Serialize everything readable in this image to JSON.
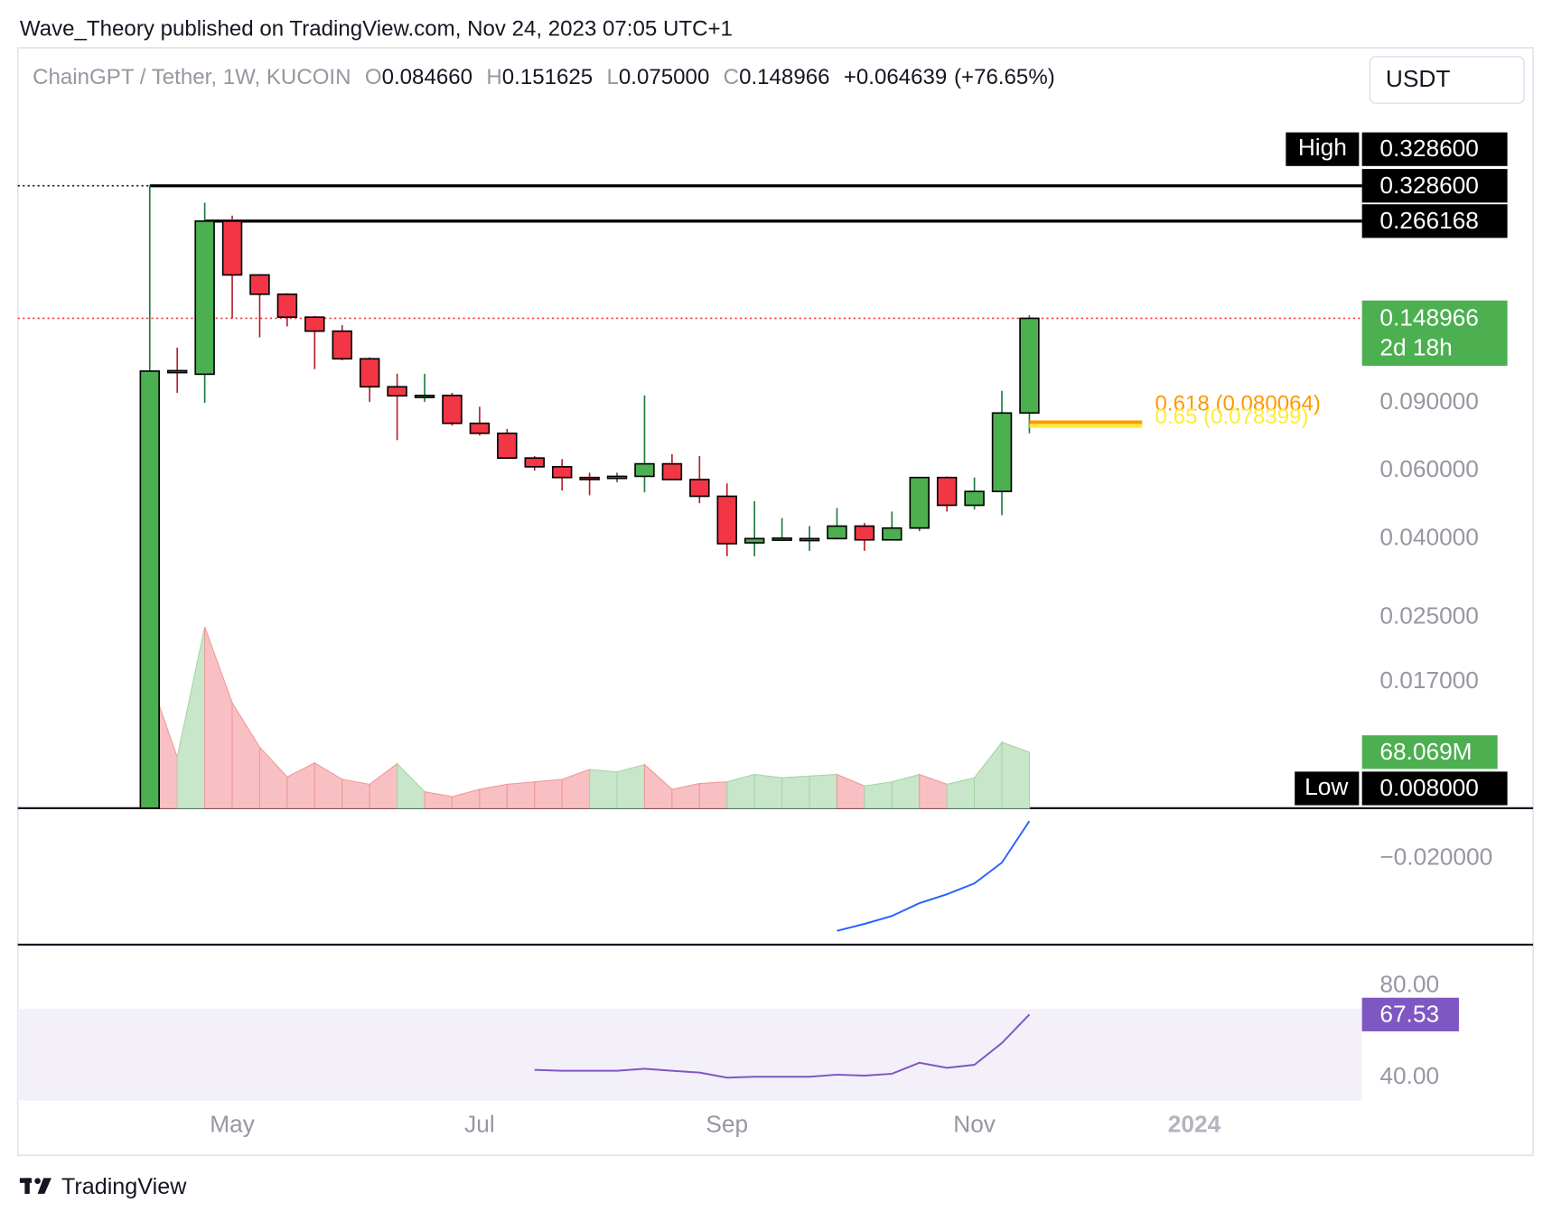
{
  "header": {
    "publisher": "Wave_Theory published on TradingView.com, Nov 24, 2023 07:05 UTC+1"
  },
  "footer": {
    "logo": "TradingView"
  },
  "chart_data": [
    {
      "type": "candlestick",
      "symbol": "ChainGPT / Tether, 1W, KUCOIN",
      "currency": "USDT",
      "legend_letters": [
        "O",
        "H",
        "L",
        "C"
      ],
      "legend_values": [
        {
          "value": 0.08466,
          "label": "0.084660"
        },
        0.151625,
        {
          "value": 0.075,
          "label": "0.075000"
        },
        0.148966,
        {
          "value": 0.064639,
          "label": "+0.064639"
        },
        {
          "value": 76.65,
          "label": "(+76.65%)"
        }
      ],
      "x": [
        0,
        1,
        2,
        3,
        4,
        5,
        6,
        7,
        8,
        9,
        10,
        11,
        12,
        13,
        14,
        15,
        16,
        17,
        18,
        19,
        20,
        21,
        22,
        23,
        24,
        25,
        26,
        27,
        28,
        29,
        30,
        31,
        32
      ],
      "open": [
        0.008,
        0.109,
        0.1067,
        0.266168,
        0.193,
        0.172,
        0.15,
        0.138,
        0.117,
        0.099,
        0.0938,
        0.094,
        0.0796,
        0.075,
        0.0647,
        0.0614,
        0.0576,
        0.0573,
        0.058,
        0.0625,
        0.0569,
        0.0515,
        0.039,
        0.04,
        0.0399,
        0.04,
        0.0431,
        0.0397,
        0.0426,
        0.0576,
        0.0488,
        0.053,
        0.08466
      ],
      "high": [
        0.3286,
        0.125,
        0.297,
        0.275,
        0.194,
        0.173,
        0.151,
        0.143,
        0.118,
        0.107,
        0.107,
        0.0955,
        0.0879,
        0.077,
        0.0655,
        0.0643,
        0.0593,
        0.0593,
        0.094,
        0.0662,
        0.0655,
        0.0556,
        0.05,
        0.0452,
        0.0431,
        0.048,
        0.0439,
        0.047,
        0.0576,
        0.058,
        0.0576,
        0.0966,
        0.151625
      ],
      "low": [
        0.008,
        0.0955,
        0.09,
        0.149,
        0.133,
        0.142,
        0.11,
        0.116,
        0.0905,
        0.072,
        0.0905,
        0.0785,
        0.074,
        0.0647,
        0.06,
        0.0533,
        0.0518,
        0.056,
        0.0527,
        0.0569,
        0.0494,
        0.036,
        0.036,
        0.0395,
        0.0372,
        0.0398,
        0.0372,
        0.0396,
        0.0418,
        0.047,
        0.0476,
        0.046,
        0.075
      ],
      "close": [
        0.1087,
        0.1085,
        0.266168,
        0.193,
        0.172,
        0.15,
        0.138,
        0.117,
        0.099,
        0.0938,
        0.094,
        0.0796,
        0.075,
        0.0647,
        0.0614,
        0.0576,
        0.0573,
        0.058,
        0.0625,
        0.0569,
        0.0515,
        0.0388,
        0.04,
        0.0401,
        0.04,
        0.0431,
        0.0397,
        0.0426,
        0.0576,
        0.0488,
        0.053,
        0.08466,
        0.148966
      ],
      "up_color": "#4caf50",
      "down_color": "#f23645",
      "log_scale": true,
      "xlim": [
        -4.8,
        44.1
      ],
      "ylim": [
        0.008,
        0.74
      ],
      "yticks": [
        {
          "value": 0.09,
          "label": "0.090000"
        },
        {
          "value": 0.06,
          "label": "0.060000"
        },
        {
          "value": 0.04,
          "label": "0.040000"
        },
        {
          "value": 0.025,
          "label": "0.025000"
        },
        {
          "value": 0.017,
          "label": "0.017000"
        }
      ],
      "xticks": [
        {
          "value": 3,
          "label": "May"
        },
        {
          "value": 12,
          "label": "Jul"
        },
        {
          "value": 21,
          "label": "Sep"
        },
        {
          "value": 30,
          "label": "Nov"
        },
        {
          "value": 38,
          "label": "2024"
        }
      ],
      "levels": [
        {
          "value": 0.3286,
          "label": "0.328600"
        },
        0.266168
      ],
      "high_marker": {
        "name": "High",
        "value": 0.3286,
        "label": "0.328600"
      },
      "low_marker": {
        "name": "Low",
        "value": 0.008,
        "label": "0.008000"
      },
      "countdown": "2d 18h",
      "fib_levels": [
        {
          "value": 0.080064,
          "label": "0.618 (0.080064)",
          "color": "#ff9800"
        },
        {
          "value": 0.078399,
          "label": "0.65 (0.078399)",
          "color": "#ffeb3b"
        }
      ]
    },
    {
      "type": "area",
      "values": [
        158,
        62,
        220,
        128,
        74,
        38,
        55,
        35,
        29,
        54,
        20,
        14,
        23,
        29,
        32,
        35,
        47,
        44,
        53,
        23,
        30,
        32,
        41,
        37,
        39,
        41,
        27,
        32,
        41,
        29,
        37,
        80,
        68.069
      ],
      "value_labels": [
        null,
        null,
        null,
        null,
        null,
        null,
        null,
        null,
        null,
        null,
        null,
        null,
        null,
        null,
        null,
        null,
        null,
        null,
        null,
        null,
        null,
        null,
        null,
        null,
        null,
        null,
        null,
        null,
        null,
        null,
        null,
        null,
        "68.069M"
      ],
      "up_color": "#c8e6c9",
      "down_color": "#f9c0c3",
      "ylim": [
        0,
        240
      ]
    },
    {
      "type": "line",
      "values": [
        null,
        null,
        null,
        null,
        null,
        null,
        null,
        null,
        null,
        null,
        null,
        null,
        null,
        null,
        null,
        null,
        null,
        null,
        null,
        null,
        null,
        null,
        null,
        null,
        null,
        -0.0346,
        -0.0332,
        -0.0316,
        -0.029,
        -0.0272,
        -0.025,
        -0.0208,
        -0.0124
      ],
      "color": "#2962ff",
      "ylim": [
        -0.0374,
        -0.0098
      ],
      "yticks": [
        {
          "value": -0.02,
          "label": "−0.020000"
        }
      ]
    },
    {
      "type": "line",
      "values": [
        null,
        null,
        null,
        null,
        null,
        null,
        null,
        null,
        null,
        null,
        null,
        null,
        null,
        null,
        43.4,
        43.0,
        43.0,
        43.0,
        43.9,
        43.0,
        42.2,
        40.0,
        40.4,
        40.4,
        40.4,
        41.3,
        40.9,
        41.7,
        46.5,
        44.3,
        45.6,
        55.1,
        67.53
      ],
      "color": "#7e57c2",
      "ylim": [
        29,
        98
      ],
      "yticks": [
        {
          "value": 80,
          "label": "80.00"
        },
        {
          "value": 40,
          "label": "40.00"
        }
      ],
      "band": [
        30,
        70
      ],
      "band_color": "#f3f0fa"
    }
  ]
}
